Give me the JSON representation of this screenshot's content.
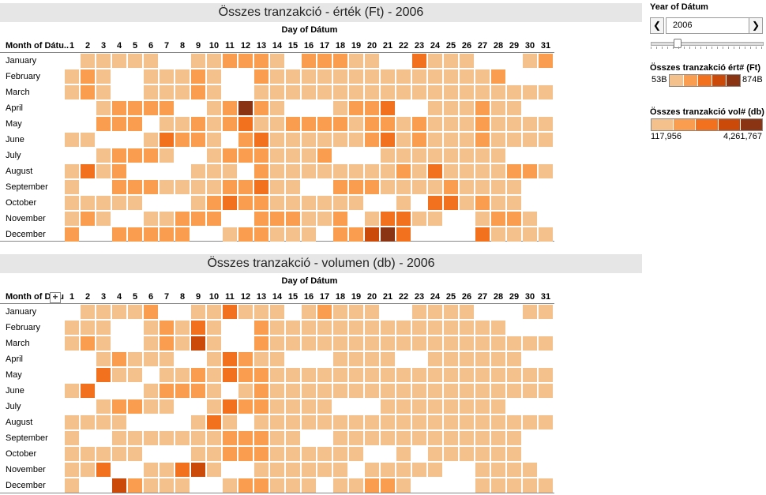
{
  "colors": {
    "level1": "#f4c08c",
    "level2": "#fb9d4e",
    "level3": "#f2711e",
    "level4": "#cc4a09",
    "level5": "#8b3414"
  },
  "chart_data": [
    {
      "type": "heatmap",
      "title": "Összes tranzakció - érték (Ft) - 2006",
      "xlabel": "Day of Dátum",
      "ylabel": "Month of Dátu..",
      "x": [
        "1",
        "2",
        "3",
        "4",
        "5",
        "6",
        "7",
        "8",
        "9",
        "10",
        "11",
        "12",
        "13",
        "14",
        "15",
        "16",
        "17",
        "18",
        "19",
        "20",
        "21",
        "22",
        "23",
        "24",
        "25",
        "26",
        "27",
        "28",
        "29",
        "30",
        "31"
      ],
      "y": [
        "January",
        "February",
        "March",
        "April",
        "May",
        "June",
        "July",
        "August",
        "September",
        "October",
        "November",
        "December"
      ],
      "value_scale": "color level 0 (no data) to 5 (darkest)",
      "values": [
        [
          0,
          1,
          1,
          1,
          1,
          1,
          0,
          0,
          1,
          1,
          2,
          2,
          2,
          1,
          0,
          2,
          2,
          2,
          1,
          1,
          0,
          0,
          3,
          1,
          1,
          1,
          0,
          0,
          0,
          1,
          2
        ],
        [
          1,
          2,
          1,
          0,
          0,
          1,
          1,
          1,
          2,
          1,
          0,
          0,
          2,
          1,
          1,
          1,
          1,
          1,
          1,
          1,
          1,
          1,
          1,
          1,
          1,
          1,
          1,
          2,
          0,
          0,
          0
        ],
        [
          1,
          2,
          1,
          0,
          0,
          1,
          1,
          1,
          2,
          1,
          0,
          0,
          1,
          1,
          1,
          1,
          1,
          1,
          1,
          1,
          1,
          1,
          1,
          1,
          1,
          1,
          1,
          1,
          1,
          1,
          1
        ],
        [
          0,
          0,
          1,
          2,
          2,
          2,
          2,
          0,
          0,
          1,
          2,
          5,
          2,
          1,
          0,
          0,
          0,
          1,
          2,
          2,
          3,
          0,
          0,
          1,
          1,
          1,
          2,
          1,
          1,
          0,
          0
        ],
        [
          0,
          0,
          2,
          2,
          2,
          0,
          1,
          1,
          2,
          1,
          2,
          3,
          1,
          1,
          2,
          2,
          2,
          2,
          1,
          2,
          2,
          1,
          2,
          1,
          1,
          1,
          2,
          1,
          1,
          1,
          1
        ],
        [
          1,
          1,
          0,
          0,
          0,
          1,
          3,
          2,
          2,
          1,
          0,
          2,
          3,
          1,
          1,
          1,
          1,
          1,
          1,
          2,
          3,
          1,
          2,
          1,
          1,
          1,
          2,
          1,
          1,
          1,
          1
        ],
        [
          0,
          0,
          1,
          2,
          2,
          2,
          1,
          0,
          0,
          1,
          2,
          2,
          2,
          1,
          1,
          1,
          2,
          0,
          0,
          0,
          1,
          1,
          1,
          1,
          1,
          1,
          1,
          1,
          0,
          0,
          0
        ],
        [
          1,
          3,
          1,
          2,
          0,
          0,
          0,
          0,
          1,
          1,
          1,
          0,
          2,
          1,
          1,
          1,
          1,
          1,
          1,
          1,
          1,
          2,
          1,
          3,
          1,
          1,
          1,
          1,
          2,
          2,
          1
        ],
        [
          1,
          0,
          0,
          2,
          2,
          2,
          1,
          1,
          1,
          1,
          2,
          2,
          3,
          1,
          1,
          0,
          0,
          2,
          2,
          2,
          1,
          1,
          1,
          1,
          2,
          1,
          1,
          1,
          1,
          0,
          0
        ],
        [
          1,
          1,
          1,
          1,
          1,
          0,
          0,
          0,
          1,
          2,
          3,
          2,
          2,
          1,
          1,
          1,
          1,
          1,
          1,
          0,
          0,
          1,
          0,
          3,
          3,
          1,
          2,
          1,
          1,
          0,
          0
        ],
        [
          1,
          2,
          1,
          0,
          0,
          1,
          1,
          2,
          2,
          2,
          0,
          0,
          2,
          2,
          2,
          1,
          1,
          2,
          0,
          1,
          3,
          3,
          1,
          1,
          0,
          0,
          1,
          2,
          2,
          1,
          0
        ],
        [
          2,
          0,
          0,
          2,
          2,
          2,
          2,
          2,
          0,
          0,
          1,
          2,
          2,
          1,
          1,
          1,
          0,
          2,
          2,
          4,
          5,
          3,
          0,
          0,
          0,
          0,
          3,
          1,
          1,
          1,
          1
        ]
      ]
    },
    {
      "type": "heatmap",
      "title": "Összes tranzakció - volumen (db) - 2006",
      "xlabel": "Day of Dátum",
      "ylabel": "Month of Dátu",
      "x": [
        "1",
        "2",
        "3",
        "4",
        "5",
        "6",
        "7",
        "8",
        "9",
        "10",
        "11",
        "12",
        "13",
        "14",
        "15",
        "16",
        "17",
        "18",
        "19",
        "20",
        "21",
        "22",
        "23",
        "24",
        "25",
        "26",
        "27",
        "28",
        "29",
        "30",
        "31"
      ],
      "y": [
        "January",
        "February",
        "March",
        "April",
        "May",
        "June",
        "July",
        "August",
        "September",
        "October",
        "November",
        "December"
      ],
      "value_scale": "color level 0 (no data) to 5 (darkest)",
      "values": [
        [
          0,
          1,
          1,
          1,
          1,
          2,
          0,
          0,
          1,
          1,
          3,
          1,
          1,
          1,
          0,
          1,
          2,
          1,
          1,
          1,
          0,
          0,
          1,
          1,
          1,
          1,
          0,
          0,
          0,
          1,
          1
        ],
        [
          1,
          1,
          1,
          0,
          0,
          1,
          2,
          1,
          3,
          1,
          0,
          0,
          2,
          1,
          1,
          1,
          1,
          1,
          1,
          1,
          1,
          1,
          1,
          1,
          1,
          1,
          1,
          1,
          0,
          0,
          0
        ],
        [
          1,
          2,
          1,
          0,
          0,
          1,
          2,
          1,
          4,
          1,
          0,
          0,
          2,
          1,
          1,
          1,
          1,
          1,
          1,
          1,
          1,
          1,
          1,
          1,
          1,
          1,
          1,
          1,
          1,
          1,
          1
        ],
        [
          0,
          0,
          1,
          2,
          1,
          1,
          1,
          0,
          0,
          1,
          3,
          2,
          1,
          1,
          0,
          0,
          0,
          1,
          1,
          1,
          1,
          0,
          0,
          1,
          1,
          1,
          1,
          1,
          1,
          0,
          0
        ],
        [
          0,
          0,
          3,
          1,
          1,
          0,
          1,
          1,
          2,
          1,
          3,
          2,
          2,
          1,
          1,
          1,
          1,
          1,
          1,
          1,
          1,
          1,
          1,
          1,
          1,
          1,
          1,
          1,
          1,
          1,
          1
        ],
        [
          1,
          3,
          0,
          0,
          0,
          1,
          2,
          2,
          2,
          1,
          0,
          1,
          2,
          1,
          1,
          1,
          1,
          1,
          1,
          1,
          1,
          1,
          1,
          1,
          1,
          1,
          1,
          1,
          1,
          1,
          1
        ],
        [
          0,
          0,
          1,
          2,
          2,
          1,
          1,
          0,
          0,
          1,
          3,
          2,
          2,
          1,
          1,
          1,
          1,
          0,
          0,
          0,
          1,
          1,
          1,
          1,
          1,
          1,
          1,
          1,
          0,
          0,
          0
        ],
        [
          1,
          1,
          1,
          1,
          0,
          0,
          0,
          0,
          1,
          3,
          1,
          0,
          1,
          1,
          1,
          1,
          1,
          1,
          1,
          1,
          1,
          1,
          1,
          1,
          1,
          1,
          1,
          1,
          1,
          1,
          1
        ],
        [
          1,
          0,
          0,
          1,
          1,
          1,
          1,
          1,
          1,
          1,
          2,
          2,
          2,
          1,
          1,
          0,
          0,
          1,
          1,
          1,
          1,
          1,
          1,
          1,
          1,
          1,
          1,
          1,
          1,
          0,
          0
        ],
        [
          1,
          1,
          1,
          1,
          1,
          0,
          0,
          0,
          1,
          1,
          2,
          2,
          2,
          1,
          1,
          1,
          1,
          1,
          1,
          0,
          0,
          1,
          0,
          1,
          1,
          1,
          1,
          1,
          1,
          0,
          0
        ],
        [
          1,
          1,
          3,
          0,
          0,
          1,
          1,
          3,
          4,
          1,
          0,
          0,
          1,
          1,
          1,
          1,
          1,
          1,
          0,
          1,
          1,
          1,
          1,
          1,
          0,
          0,
          1,
          1,
          1,
          1,
          0
        ],
        [
          1,
          0,
          0,
          4,
          2,
          1,
          1,
          1,
          0,
          0,
          1,
          2,
          2,
          1,
          1,
          1,
          0,
          1,
          1,
          2,
          2,
          1,
          0,
          0,
          0,
          0,
          1,
          1,
          1,
          1,
          1
        ]
      ]
    }
  ],
  "sidebar": {
    "year_title": "Year of Dátum",
    "year_value": "2006",
    "prev_label": "❮",
    "next_label": "❯",
    "dropdown_arrow": "▼",
    "legend1": {
      "title": "Összes tranzakció ért# (Ft)",
      "min": "53B",
      "max": "874B"
    },
    "legend2": {
      "title": "Összes tranzakció vol# (db)",
      "min": "117,956",
      "max": "4,261,767"
    }
  }
}
